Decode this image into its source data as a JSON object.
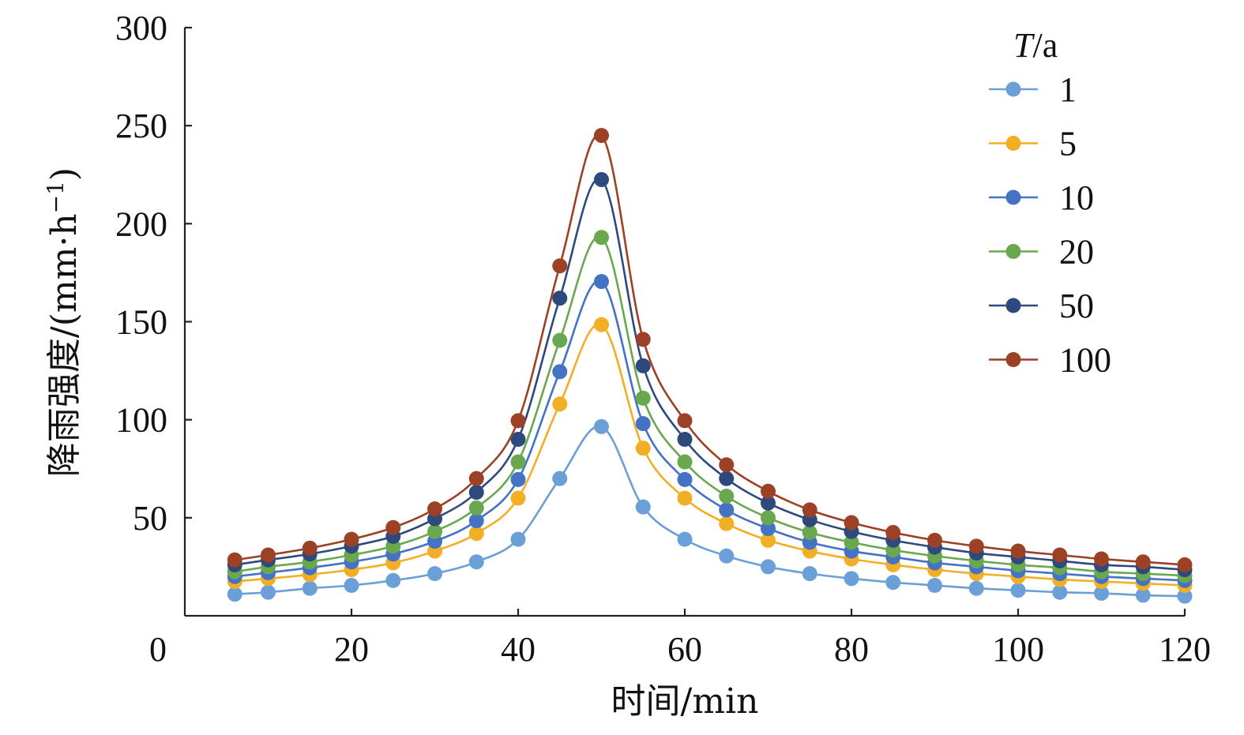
{
  "chart_data": {
    "type": "line",
    "xlabel": "时间/min",
    "ylabel_main": "降雨强度/(mm·h",
    "ylabel_sup": "−1",
    "ylabel_tail": ")",
    "legend_title_italic": "T",
    "legend_title_rest": "/a",
    "legend_position": "top-right",
    "grid": false,
    "xlim": [
      0,
      120
    ],
    "ylim": [
      0,
      300
    ],
    "x_ticks": [
      0,
      20,
      40,
      60,
      80,
      100,
      120
    ],
    "y_ticks": [
      50,
      100,
      150,
      200,
      250,
      300
    ],
    "y_tick_labels": [
      "50",
      "100",
      "150",
      "200",
      "250",
      "300"
    ],
    "x_tick_labels": [
      "0",
      "20",
      "40",
      "60",
      "80",
      "100",
      "120"
    ],
    "x": [
      6,
      10,
      15,
      20,
      25,
      30,
      35,
      40,
      45,
      50,
      55,
      60,
      65,
      70,
      75,
      80,
      85,
      90,
      95,
      100,
      105,
      110,
      115,
      120
    ],
    "series": [
      {
        "name": "1",
        "color": "#6a9fd8",
        "values": [
          11,
          12,
          14,
          15.5,
          18,
          21.5,
          27.5,
          39,
          70,
          96.5,
          55.5,
          39,
          30.5,
          25,
          21.5,
          19,
          17,
          15.5,
          14,
          13,
          12,
          11.5,
          10.5,
          10
        ]
      },
      {
        "name": "5",
        "color": "#f2ae24",
        "values": [
          17.5,
          19,
          21,
          23.5,
          27,
          33,
          42,
          60,
          108,
          148.5,
          85.5,
          60,
          47,
          38.5,
          33,
          29,
          26,
          23.5,
          21.5,
          20,
          18.5,
          17.5,
          16.5,
          15.5
        ]
      },
      {
        "name": "10",
        "color": "#4472c4",
        "values": [
          20,
          22,
          24.5,
          27.5,
          31.5,
          38,
          48.5,
          69.5,
          124.5,
          170.5,
          98,
          69.5,
          54,
          44.5,
          37.5,
          33,
          30,
          27,
          25,
          23,
          21.5,
          20,
          19,
          18
        ]
      },
      {
        "name": "20",
        "color": "#6aa84f",
        "values": [
          22.5,
          25,
          27.5,
          31,
          35.5,
          43,
          55,
          78.5,
          140.5,
          193,
          111,
          78.5,
          61,
          50,
          42.5,
          37.5,
          33.5,
          30.5,
          28,
          26,
          24.5,
          22.5,
          21.5,
          20.5
        ]
      },
      {
        "name": "50",
        "color": "#2e4a7d",
        "values": [
          26,
          28.5,
          31.5,
          35.5,
          40.5,
          49.5,
          63,
          90,
          162,
          222.5,
          127.5,
          90,
          70,
          57.5,
          49,
          43,
          38.5,
          35,
          32,
          30,
          28,
          26,
          25,
          23.5
        ]
      },
      {
        "name": "100",
        "color": "#9c4125",
        "values": [
          28.5,
          31,
          34.5,
          39,
          45,
          54.5,
          70,
          99.5,
          178.5,
          245,
          141,
          99.5,
          77,
          63.5,
          54,
          47.5,
          42.5,
          38.5,
          35.5,
          33,
          31,
          29,
          27.5,
          26
        ]
      }
    ]
  }
}
